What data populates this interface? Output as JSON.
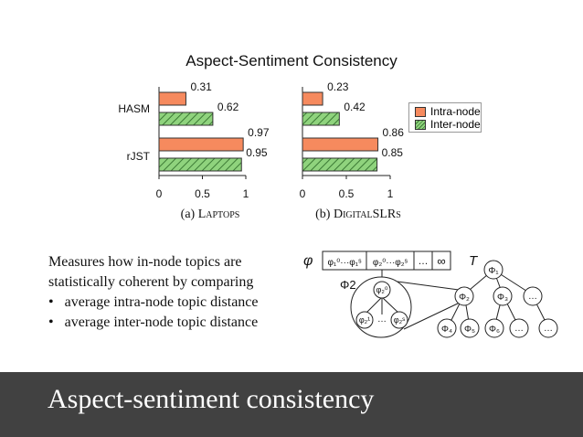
{
  "chart_data": [
    {
      "type": "bar",
      "orientation": "horizontal",
      "panel_caption": "(a) Laptops",
      "categories": [
        "HASM",
        "rJST"
      ],
      "series": [
        {
          "name": "Intra-node",
          "values": [
            0.31,
            0.97
          ],
          "color": "#f68a5e"
        },
        {
          "name": "Inter-node",
          "values": [
            0.62,
            0.95
          ],
          "color": "#8fd37d"
        }
      ],
      "value_labels": [
        [
          "0.31",
          "0.62"
        ],
        [
          "0.97",
          "0.95"
        ]
      ],
      "xlim": [
        0,
        1
      ],
      "x_ticks": [
        "0",
        "0.5",
        "1"
      ]
    },
    {
      "type": "bar",
      "orientation": "horizontal",
      "panel_caption": "(b) DigitalSLRs",
      "categories": [
        "HASM",
        "rJST"
      ],
      "series": [
        {
          "name": "Intra-node",
          "values": [
            0.23,
            0.86
          ],
          "color": "#f68a5e"
        },
        {
          "name": "Inter-node",
          "values": [
            0.42,
            0.85
          ],
          "color": "#8fd37d"
        }
      ],
      "value_labels": [
        [
          "0.23",
          "0.42"
        ],
        [
          "0.86",
          "0.85"
        ]
      ],
      "xlim": [
        0,
        1
      ],
      "x_ticks": [
        "0",
        "0.5",
        "1"
      ]
    }
  ],
  "chart": {
    "title": "Aspect-Sentiment Consistency",
    "legend": {
      "intra": "Intra-node",
      "inter": "Inter-node",
      "placement": "right"
    },
    "caption_a_prefix": "(a) ",
    "caption_a_name": "Laptops",
    "caption_b_prefix": "(b) ",
    "caption_b_name": "DigitalSLRs"
  },
  "description": {
    "line1": "Measures how in-node topics are",
    "line2": "statistically coherent by comparing",
    "bullets": [
      "average intra-node topic distance",
      "average inter-node topic distance"
    ]
  },
  "diagram": {
    "phi_label": "φ",
    "t_label": "T",
    "phi2_label": "Φ2",
    "cells": [
      "φ₁⁰···φ₁ˢ",
      "φ₂⁰···φ₂ˢ",
      "…",
      "∞"
    ],
    "inner_nodes": [
      "φ₂⁰",
      "φ₂¹",
      "…",
      "φ₂ˢ"
    ],
    "tree_nodes": [
      "Φ₁",
      "Φ₂",
      "Φ₃",
      "…",
      "Φ₄",
      "Φ₅",
      "Φ₆",
      "…",
      "…"
    ]
  },
  "footer": {
    "title": "Aspect-sentiment consistency"
  }
}
